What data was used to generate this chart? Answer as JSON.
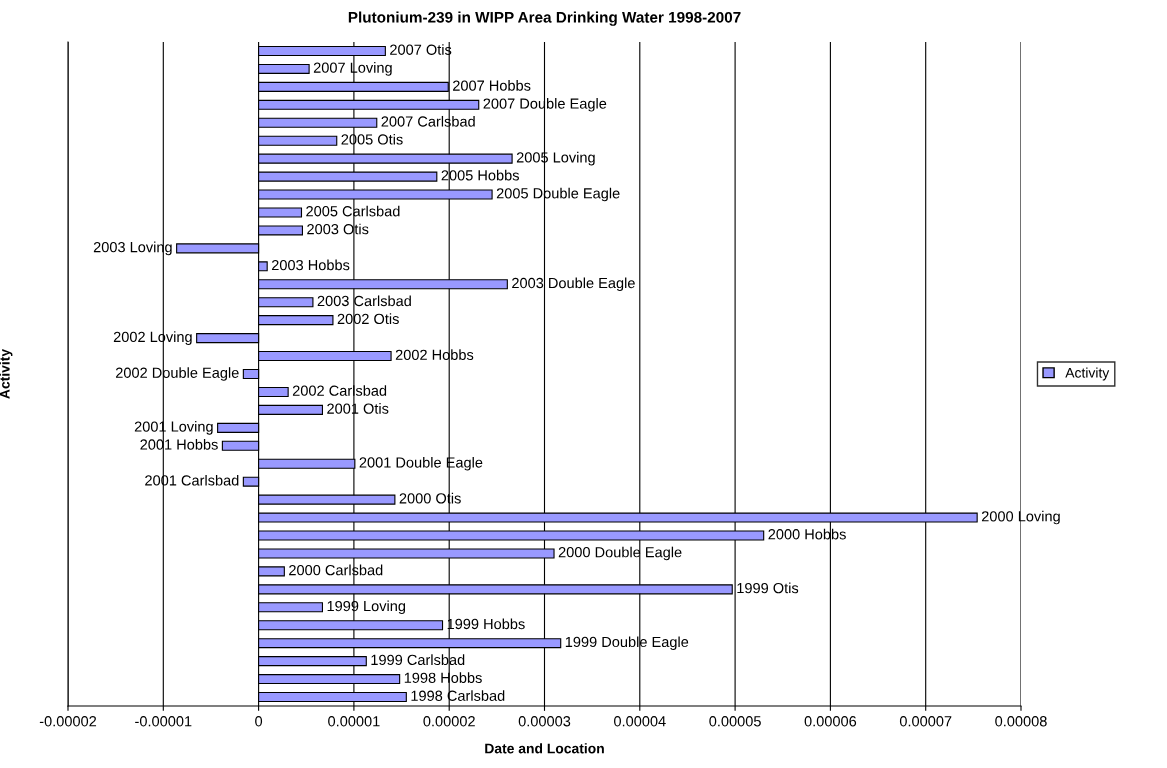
{
  "chart_data": {
    "type": "bar",
    "orientation": "horizontal",
    "title": "Plutonium-239 in WIPP Area Drinking Water 1998-2007",
    "xlabel": "Date and Location",
    "ylabel": "Activity",
    "categories": [
      "2007 Otis",
      "2007 Loving",
      "2007 Hobbs",
      "2007 Double Eagle",
      "2007 Carlsbad",
      "2005 Otis",
      "2005 Loving",
      "2005 Hobbs",
      "2005 Double Eagle",
      "2005 Carlsbad",
      "2003 Otis",
      "2003 Loving",
      "2003 Hobbs",
      "2003 Double Eagle",
      "2003 Carlsbad",
      "2002 Otis",
      "2002 Loving",
      "2002 Hobbs",
      "2002 Double Eagle",
      "2002 Carlsbad",
      "2001 Otis",
      "2001 Loving",
      "2001 Hobbs",
      "2001 Double Eagle",
      "2001 Carlsbad",
      "2000 Otis",
      "2000 Loving",
      "2000 Hobbs",
      "2000 Double Eagle",
      "2000 Carlsbad",
      "1999 Otis",
      "1999 Loving",
      "1999 Hobbs",
      "1999 Double Eagle",
      "1999 Carlsbad",
      "1998 Hobbs",
      "1998 Carlsbad"
    ],
    "series": [
      {
        "name": "Activity",
        "color": "#9999ff",
        "values": [
          1.33e-05,
          5.3e-06,
          1.99e-05,
          2.31e-05,
          1.24e-05,
          8.2e-06,
          2.66e-05,
          1.87e-05,
          2.45e-05,
          4.5e-06,
          4.6e-06,
          -8.6e-06,
          9e-07,
          2.61e-05,
          5.7e-06,
          7.8e-06,
          -6.5e-06,
          1.39e-05,
          -1.6e-06,
          3.1e-06,
          6.7e-06,
          -4.3e-06,
          -3.8e-06,
          1.01e-05,
          -1.6e-06,
          1.43e-05,
          7.54e-05,
          5.3e-05,
          3.1e-05,
          2.7e-06,
          4.97e-05,
          6.7e-06,
          1.93e-05,
          3.17e-05,
          1.13e-05,
          1.48e-05,
          1.55e-05
        ]
      }
    ],
    "xlim": [
      -2e-05,
      8e-05
    ],
    "xticks": [
      {
        "value": -2e-05,
        "label": "-0.00002"
      },
      {
        "value": -1e-05,
        "label": "-0.00001"
      },
      0,
      {
        "value": 1e-05,
        "label": "0.00001"
      },
      {
        "value": 2e-05,
        "label": "0.00002"
      },
      {
        "value": 3e-05,
        "label": "0.00003"
      },
      {
        "value": 4e-05,
        "label": "0.00004"
      },
      {
        "value": 5e-05,
        "label": "0.00005"
      },
      {
        "value": 6e-05,
        "label": "0.00006"
      },
      {
        "value": 7e-05,
        "label": "0.00007"
      },
      {
        "value": 8e-05,
        "label": "0.00008"
      }
    ],
    "grid": "x",
    "legend": "right",
    "tick_labels": "x"
  }
}
